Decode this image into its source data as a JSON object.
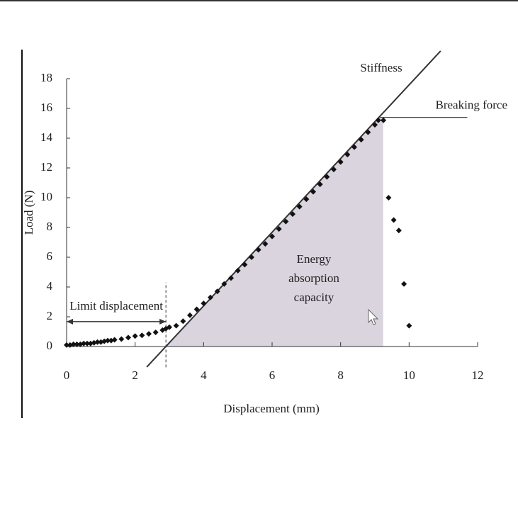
{
  "chart_data": {
    "type": "scatter",
    "x_label": "Displacement (mm)",
    "y_label": "Load (N)",
    "xlim": [
      0,
      12
    ],
    "ylim": [
      0,
      18
    ],
    "xticks": [
      0,
      2,
      4,
      6,
      8,
      10,
      12
    ],
    "yticks": [
      0,
      2,
      4,
      6,
      8,
      10,
      12,
      14,
      16,
      18
    ],
    "series": [
      {
        "color": "#111111",
        "x": [
          0,
          0.1,
          0.2,
          0.3,
          0.4,
          0.5,
          0.6,
          0.7,
          0.8,
          0.9,
          1.0,
          1.1,
          1.2,
          1.3,
          1.4,
          1.6,
          1.8,
          2.0,
          2.2,
          2.4,
          2.6,
          2.8,
          2.9,
          3.0,
          3.2,
          3.4,
          3.6,
          3.8,
          4.0,
          4.2,
          4.4,
          4.6,
          4.8,
          5.0,
          5.2,
          5.4,
          5.6,
          5.8,
          6.0,
          6.2,
          6.4,
          6.6,
          6.8,
          7.0,
          7.2,
          7.4,
          7.6,
          7.8,
          8.0,
          8.2,
          8.4,
          8.6,
          8.8,
          9.0,
          9.1,
          9.25,
          9.4,
          9.55,
          9.7,
          9.85,
          10.0
        ],
        "values": [
          0.1,
          0.1,
          0.15,
          0.15,
          0.15,
          0.2,
          0.2,
          0.2,
          0.25,
          0.3,
          0.3,
          0.35,
          0.4,
          0.4,
          0.45,
          0.5,
          0.6,
          0.7,
          0.75,
          0.85,
          0.95,
          1.1,
          1.2,
          1.3,
          1.4,
          1.7,
          2.1,
          2.5,
          2.9,
          3.3,
          3.7,
          4.2,
          4.6,
          5.1,
          5.5,
          6.0,
          6.5,
          6.9,
          7.4,
          7.9,
          8.4,
          8.9,
          9.4,
          9.9,
          10.4,
          10.9,
          11.4,
          11.9,
          12.4,
          12.9,
          13.4,
          13.9,
          14.4,
          14.9,
          15.2,
          15.2,
          10.0,
          8.5,
          7.8,
          4.2,
          1.4
        ]
      }
    ],
    "annotations": {
      "stiffness": {
        "label": "Stiffness",
        "x": [
          2.34,
          10.92
        ],
        "y": [
          -1.38,
          19.86
        ]
      },
      "breaking_force": {
        "label": "Breaking force",
        "value": 15.4,
        "x_end": 11.7
      },
      "limit_displacement": {
        "label": "Limit displacement",
        "value": 2.9,
        "arrow_y": 1.67,
        "dash_y": [
          -1.4,
          4.3
        ]
      },
      "energy": {
        "lines": [
          "Energy",
          "absorption",
          "capacity"
        ],
        "color": "#d9d4de"
      }
    }
  }
}
